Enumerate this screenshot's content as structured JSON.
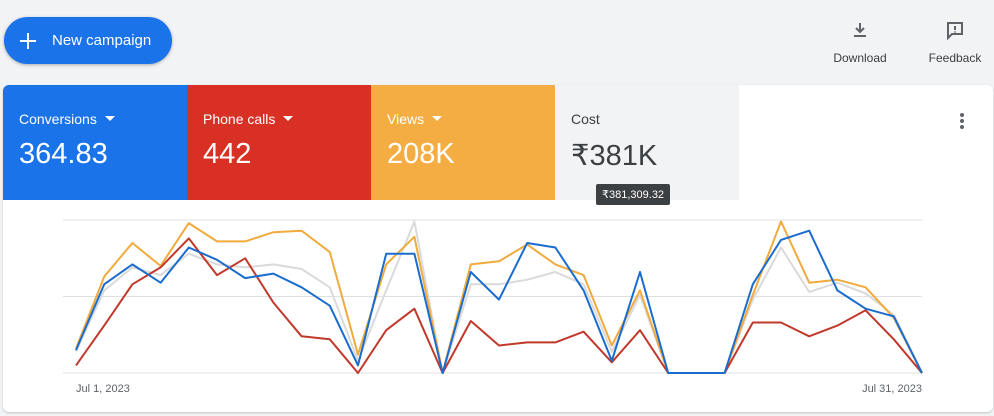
{
  "toolbar": {
    "new_campaign": "New campaign",
    "download": "Download",
    "feedback": "Feedback"
  },
  "chart_data": {
    "type": "line",
    "categories": [
      "Jul 1, 2023",
      null,
      null,
      null,
      null,
      null,
      null,
      null,
      null,
      null,
      null,
      null,
      null,
      null,
      null,
      null,
      null,
      null,
      null,
      null,
      null,
      null,
      null,
      null,
      null,
      null,
      null,
      null,
      null,
      null,
      "Jul 31, 2023"
    ],
    "ylim": [
      0,
      100
    ],
    "ygrid": [
      0,
      50,
      100
    ],
    "series": [
      {
        "name": "Conversions",
        "total": "364.83",
        "color": "#1b6ccf",
        "tile_color": "#1a73e8",
        "dropdown": true,
        "values": [
          15,
          58,
          71,
          59,
          82,
          74,
          62,
          65,
          56,
          44,
          5,
          78,
          78,
          0,
          66,
          48,
          85,
          82,
          54,
          8,
          66,
          0,
          0,
          0,
          58,
          87,
          93,
          54,
          42,
          37,
          0
        ]
      },
      {
        "name": "Phone calls",
        "total": "442",
        "color": "#c0392b",
        "tile_color": "#d93025",
        "dropdown": true,
        "values": [
          5,
          31,
          58,
          69,
          88,
          64,
          75,
          46,
          24,
          22,
          0,
          28,
          42,
          0,
          34,
          18,
          20,
          20,
          27,
          7,
          28,
          0,
          0,
          0,
          33,
          33,
          24,
          31,
          41,
          22,
          0
        ]
      },
      {
        "name": "Views",
        "total": "208K",
        "color": "#f0ab3c",
        "tile_color": "#f4ad42",
        "dropdown": true,
        "values": [
          16,
          63,
          85,
          70,
          98,
          86,
          86,
          92,
          93,
          79,
          12,
          71,
          89,
          0,
          71,
          73,
          84,
          71,
          64,
          18,
          54,
          0,
          0,
          0,
          51,
          99,
          59,
          61,
          56,
          36,
          0
        ]
      },
      {
        "name": "Cost",
        "total": "₹381K",
        "tooltip": "₹381,309.32",
        "color": "#dadada",
        "tile_color": "#f1f3f4",
        "dropdown": false,
        "values": [
          14,
          54,
          69,
          64,
          78,
          71,
          69,
          71,
          68,
          56,
          8,
          54,
          99,
          0,
          58,
          58,
          61,
          66,
          58,
          14,
          51,
          0,
          0,
          0,
          48,
          82,
          53,
          59,
          52,
          38,
          0
        ]
      }
    ]
  }
}
